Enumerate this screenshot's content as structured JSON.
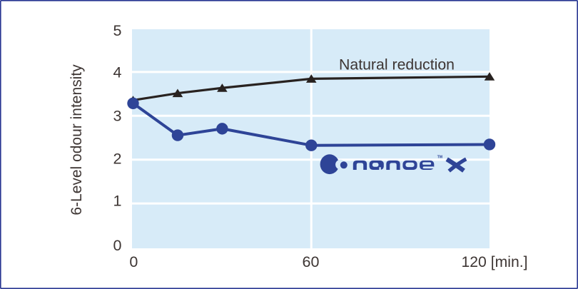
{
  "colors": {
    "background": "#ffffff",
    "frame_border": "#283692",
    "plot_background": "#d7ebf8",
    "grid": "#ffffff",
    "text": "#3d3533",
    "black_series": "#282220",
    "nanoe_blue": "#2e4497"
  },
  "labels": {
    "natural_reduction": "Natural reduction",
    "trademark": "TM",
    "nanoe_word": "nanoe",
    "nanoe_x": "X"
  },
  "chart_data": {
    "type": "line",
    "title": "",
    "ylabel": "6-Level odour intensity",
    "xlabel": "[min.]",
    "xlim": [
      0,
      120
    ],
    "ylim": [
      0,
      5
    ],
    "grid": {
      "x": [
        60
      ],
      "y": [
        1,
        2,
        3,
        4
      ]
    },
    "x_ticks": [
      {
        "value": 0,
        "label": "0"
      },
      {
        "value": 60,
        "label": "60"
      },
      {
        "value": 120,
        "label": "120 [min.]"
      }
    ],
    "y_ticks": [
      {
        "value": 0,
        "label": "0"
      },
      {
        "value": 1,
        "label": "1"
      },
      {
        "value": 2,
        "label": "2"
      },
      {
        "value": 3,
        "label": "3"
      },
      {
        "value": 4,
        "label": "4"
      },
      {
        "value": 5,
        "label": "5"
      }
    ],
    "legend": "inline annotations",
    "series": [
      {
        "name": "Natural reduction",
        "marker": "triangle",
        "color_key": "black_series",
        "x": [
          0,
          15,
          30,
          60,
          120
        ],
        "y": [
          3.38,
          3.54,
          3.66,
          3.87,
          3.92
        ]
      },
      {
        "name": "nanoe X",
        "marker": "circle",
        "color_key": "nanoe_blue",
        "x": [
          0,
          15,
          30,
          60,
          120
        ],
        "y": [
          3.31,
          2.58,
          2.73,
          2.35,
          2.37
        ]
      }
    ]
  }
}
